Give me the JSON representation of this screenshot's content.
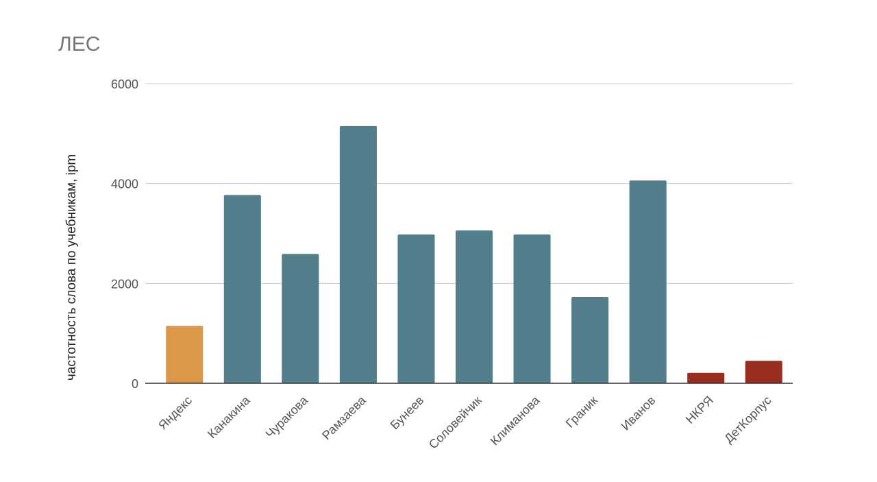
{
  "chart_data": {
    "type": "bar",
    "title": "ЛЕС",
    "xlabel": "",
    "ylabel": "частотность слова по учебникам, ipm",
    "ylim": [
      0,
      6000
    ],
    "yticks": [
      0,
      2000,
      4000,
      6000
    ],
    "grid": true,
    "legend": "none",
    "categories": [
      "Яндекс",
      "Канакина",
      "Чуракова",
      "Рамзаева",
      "Бунеев",
      "Соловейчик",
      "Климанова",
      "Граник",
      "Иванов",
      "НКРЯ",
      "ДетКорпус"
    ],
    "values": [
      1150,
      3770,
      2590,
      5150,
      2980,
      3060,
      2980,
      1730,
      4060,
      210,
      450
    ],
    "colors": [
      "#dd9749",
      "#537f8d",
      "#537f8d",
      "#537f8d",
      "#537f8d",
      "#537f8d",
      "#537f8d",
      "#537f8d",
      "#537f8d",
      "#9b2d1e",
      "#9b2d1e"
    ]
  }
}
